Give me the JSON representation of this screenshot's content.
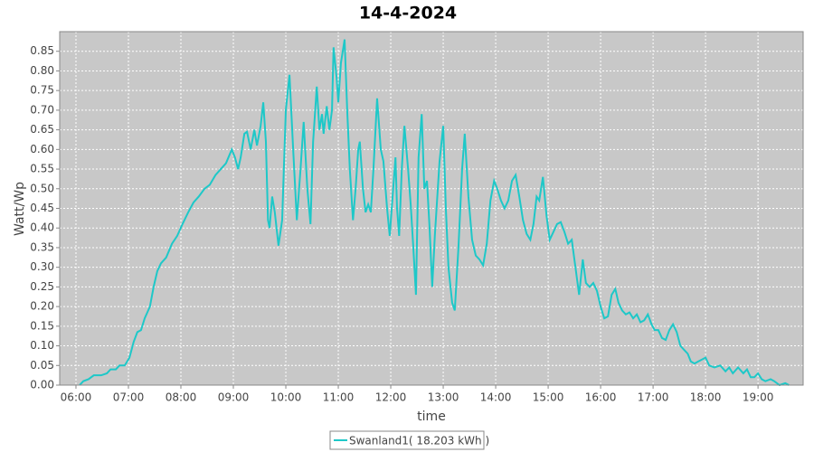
{
  "chart_data": {
    "type": "line",
    "title": "14-4-2024",
    "x_label": "time",
    "y_label": "Watt/Wp",
    "x": [
      6.07,
      6.14,
      6.24,
      6.34,
      6.48,
      6.59,
      6.66,
      6.76,
      6.83,
      6.93,
      7.02,
      7.1,
      7.17,
      7.24,
      7.31,
      7.41,
      7.48,
      7.55,
      7.62,
      7.72,
      7.83,
      7.93,
      8.03,
      8.14,
      8.24,
      8.34,
      8.45,
      8.55,
      8.66,
      8.76,
      8.86,
      8.97,
      9.03,
      9.09,
      9.14,
      9.21,
      9.26,
      9.33,
      9.4,
      9.45,
      9.52,
      9.57,
      9.62,
      9.66,
      9.69,
      9.74,
      9.79,
      9.86,
      9.93,
      10.0,
      10.07,
      10.14,
      10.21,
      10.28,
      10.34,
      10.41,
      10.47,
      10.52,
      10.59,
      10.64,
      10.69,
      10.72,
      10.78,
      10.83,
      10.88,
      10.91,
      10.97,
      11.0,
      11.05,
      11.12,
      11.17,
      11.22,
      11.28,
      11.33,
      11.38,
      11.41,
      11.47,
      11.52,
      11.57,
      11.62,
      11.67,
      11.74,
      11.81,
      11.86,
      11.93,
      11.98,
      12.03,
      12.09,
      12.12,
      12.16,
      12.21,
      12.26,
      12.33,
      12.38,
      12.43,
      12.48,
      12.53,
      12.59,
      12.64,
      12.69,
      12.74,
      12.79,
      12.84,
      12.93,
      13.0,
      13.05,
      13.1,
      13.17,
      13.22,
      13.29,
      13.36,
      13.41,
      13.48,
      13.55,
      13.62,
      13.69,
      13.76,
      13.83,
      13.9,
      13.97,
      14.03,
      14.1,
      14.17,
      14.24,
      14.31,
      14.38,
      14.45,
      14.52,
      14.59,
      14.66,
      14.72,
      14.78,
      14.83,
      14.9,
      14.97,
      15.03,
      15.1,
      15.17,
      15.24,
      15.31,
      15.38,
      15.45,
      15.52,
      15.59,
      15.66,
      15.72,
      15.79,
      15.86,
      15.93,
      16.0,
      16.07,
      16.14,
      16.21,
      16.28,
      16.34,
      16.41,
      16.48,
      16.55,
      16.62,
      16.69,
      16.76,
      16.83,
      16.9,
      16.97,
      17.03,
      17.1,
      17.17,
      17.24,
      17.31,
      17.38,
      17.45,
      17.52,
      17.59,
      17.66,
      17.72,
      17.79,
      17.86,
      17.93,
      18.0,
      18.07,
      18.17,
      18.28,
      18.38,
      18.45,
      18.52,
      18.62,
      18.72,
      18.79,
      18.86,
      18.93,
      19.0,
      19.07,
      19.14,
      19.24,
      19.31,
      19.41,
      19.52,
      19.59
    ],
    "series": [
      {
        "name": "Swanland1( 18.203 kWh )",
        "color": "#1ec8c8",
        "values": [
          0.0,
          0.01,
          0.015,
          0.025,
          0.025,
          0.03,
          0.04,
          0.04,
          0.05,
          0.05,
          0.07,
          0.11,
          0.135,
          0.14,
          0.17,
          0.2,
          0.25,
          0.29,
          0.31,
          0.325,
          0.36,
          0.38,
          0.41,
          0.44,
          0.465,
          0.48,
          0.5,
          0.51,
          0.535,
          0.55,
          0.565,
          0.6,
          0.58,
          0.55,
          0.58,
          0.64,
          0.645,
          0.6,
          0.65,
          0.61,
          0.66,
          0.72,
          0.62,
          0.42,
          0.4,
          0.48,
          0.44,
          0.355,
          0.42,
          0.7,
          0.79,
          0.6,
          0.42,
          0.55,
          0.67,
          0.5,
          0.41,
          0.62,
          0.76,
          0.65,
          0.69,
          0.64,
          0.71,
          0.65,
          0.7,
          0.86,
          0.78,
          0.72,
          0.82,
          0.88,
          0.7,
          0.55,
          0.42,
          0.5,
          0.6,
          0.62,
          0.5,
          0.44,
          0.46,
          0.44,
          0.55,
          0.73,
          0.6,
          0.57,
          0.45,
          0.38,
          0.47,
          0.58,
          0.45,
          0.38,
          0.55,
          0.66,
          0.55,
          0.46,
          0.35,
          0.23,
          0.58,
          0.69,
          0.5,
          0.52,
          0.4,
          0.25,
          0.38,
          0.57,
          0.66,
          0.45,
          0.3,
          0.21,
          0.19,
          0.35,
          0.55,
          0.64,
          0.48,
          0.37,
          0.33,
          0.32,
          0.305,
          0.36,
          0.47,
          0.52,
          0.5,
          0.47,
          0.45,
          0.47,
          0.52,
          0.535,
          0.48,
          0.42,
          0.385,
          0.37,
          0.41,
          0.48,
          0.47,
          0.53,
          0.43,
          0.37,
          0.39,
          0.41,
          0.415,
          0.39,
          0.36,
          0.37,
          0.3,
          0.23,
          0.32,
          0.26,
          0.25,
          0.26,
          0.24,
          0.2,
          0.17,
          0.175,
          0.23,
          0.245,
          0.21,
          0.19,
          0.18,
          0.185,
          0.17,
          0.18,
          0.16,
          0.165,
          0.18,
          0.155,
          0.14,
          0.14,
          0.12,
          0.115,
          0.14,
          0.155,
          0.135,
          0.1,
          0.09,
          0.08,
          0.06,
          0.055,
          0.06,
          0.065,
          0.07,
          0.05,
          0.045,
          0.05,
          0.035,
          0.045,
          0.03,
          0.045,
          0.03,
          0.04,
          0.02,
          0.02,
          0.03,
          0.015,
          0.01,
          0.015,
          0.01,
          0.0,
          0.005,
          0.0
        ]
      }
    ],
    "xlim": [
      5.69,
      19.86
    ],
    "ylim": [
      0,
      0.9
    ],
    "xticks": [
      {
        "value": 6,
        "label": "06:00"
      },
      {
        "value": 7,
        "label": "07:00"
      },
      {
        "value": 8,
        "label": "08:00"
      },
      {
        "value": 9,
        "label": "09:00"
      },
      {
        "value": 10,
        "label": "10:00"
      },
      {
        "value": 11,
        "label": "11:00"
      },
      {
        "value": 12,
        "label": "12:00"
      },
      {
        "value": 13,
        "label": "13:00"
      },
      {
        "value": 14,
        "label": "14:00"
      },
      {
        "value": 15,
        "label": "15:00"
      },
      {
        "value": 16,
        "label": "16:00"
      },
      {
        "value": 17,
        "label": "17:00"
      },
      {
        "value": 18,
        "label": "18:00"
      },
      {
        "value": 19,
        "label": "19:00"
      }
    ],
    "yticks": [
      {
        "value": 0,
        "label": "0.00"
      },
      {
        "value": 0.05,
        "label": "0.05"
      },
      {
        "value": 0.1,
        "label": "0.10"
      },
      {
        "value": 0.15,
        "label": "0.15"
      },
      {
        "value": 0.2,
        "label": "0.20"
      },
      {
        "value": 0.25,
        "label": "0.25"
      },
      {
        "value": 0.3,
        "label": "0.30"
      },
      {
        "value": 0.35,
        "label": "0.35"
      },
      {
        "value": 0.4,
        "label": "0.40"
      },
      {
        "value": 0.45,
        "label": "0.45"
      },
      {
        "value": 0.5,
        "label": "0.50"
      },
      {
        "value": 0.55,
        "label": "0.55"
      },
      {
        "value": 0.6,
        "label": "0.60"
      },
      {
        "value": 0.65,
        "label": "0.65"
      },
      {
        "value": 0.7,
        "label": "0.70"
      },
      {
        "value": 0.75,
        "label": "0.75"
      },
      {
        "value": 0.8,
        "label": "0.80"
      },
      {
        "value": 0.85,
        "label": "0.85"
      }
    ],
    "grid": true,
    "plot_background": "#c8c8c8",
    "legend": "bottom"
  }
}
